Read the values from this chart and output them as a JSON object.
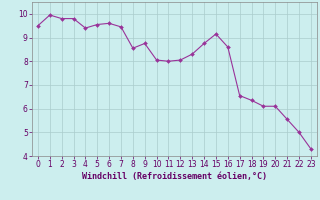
{
  "x": [
    0,
    1,
    2,
    3,
    4,
    5,
    6,
    7,
    8,
    9,
    10,
    11,
    12,
    13,
    14,
    15,
    16,
    17,
    18,
    19,
    20,
    21,
    22,
    23
  ],
  "y": [
    9.5,
    9.95,
    9.8,
    9.8,
    9.4,
    9.55,
    9.6,
    9.45,
    8.55,
    8.75,
    8.05,
    8.0,
    8.05,
    8.3,
    8.75,
    9.15,
    8.6,
    6.55,
    6.35,
    6.1,
    6.1,
    5.55,
    5.0,
    4.3
  ],
  "xlabel": "Windchill (Refroidissement éolien,°C)",
  "line_color": "#993399",
  "marker": "D",
  "marker_size": 2.0,
  "bg_color": "#cceeee",
  "grid_color": "#aacccc",
  "ylim": [
    4,
    10.5
  ],
  "xlim": [
    -0.5,
    23.5
  ],
  "yticks": [
    4,
    5,
    6,
    7,
    8,
    9,
    10
  ],
  "xticks": [
    0,
    1,
    2,
    3,
    4,
    5,
    6,
    7,
    8,
    9,
    10,
    11,
    12,
    13,
    14,
    15,
    16,
    17,
    18,
    19,
    20,
    21,
    22,
    23
  ],
  "xlabel_color": "#660066",
  "tick_color": "#660066",
  "tick_fontsize": 5.5,
  "xlabel_fontsize": 6.0,
  "linewidth": 0.8
}
